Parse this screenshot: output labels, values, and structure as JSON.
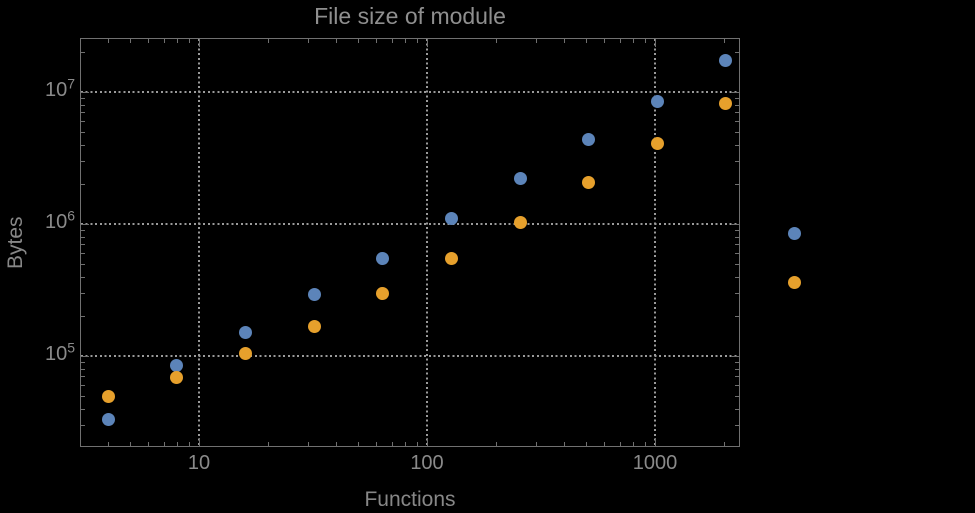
{
  "colors": {
    "background": "#000000",
    "frame": "#707070",
    "grid": "#9a9a9a",
    "tick_text": "#8a8a8a",
    "title_text": "#8f8f8f",
    "axis_label_text": "#878787",
    "series_blue": "#5c84b9",
    "series_orange": "#e6a02c"
  },
  "chart_data": {
    "type": "scatter",
    "title": "File size of module",
    "xlabel": "Functions",
    "ylabel": "Bytes",
    "x_scale": "log",
    "y_scale": "log",
    "grid": "dotted lines at decades, on",
    "legend": "none",
    "plot_range_clipping": false,
    "xlim": [
      3.2,
      2330
    ],
    "ylim": [
      21000,
      25500000
    ],
    "x_ticks": [
      10,
      100,
      1000
    ],
    "x_tick_labels": [
      "10",
      "100",
      "1000"
    ],
    "y_ticks": [
      100000,
      1000000,
      10000000
    ],
    "y_tick_labels": [
      {
        "base": "10",
        "exp": "5"
      },
      {
        "base": "10",
        "exp": "6"
      },
      {
        "base": "10",
        "exp": "7"
      }
    ],
    "x": [
      4,
      8,
      16,
      32,
      64,
      128,
      256,
      512,
      1024,
      2048,
      4096
    ],
    "series": [
      {
        "name": "blue-series",
        "color": "#5c84b9",
        "values": [
          33000,
          85000,
          150000,
          290000,
          545000,
          1100000,
          2200000,
          4350000,
          8400000,
          17200000,
          850000
        ]
      },
      {
        "name": "orange-series",
        "color": "#e6a02c",
        "values": [
          49000,
          69000,
          105000,
          167000,
          295000,
          545000,
          1030000,
          2060000,
          4100000,
          8250000,
          360000
        ]
      }
    ]
  }
}
